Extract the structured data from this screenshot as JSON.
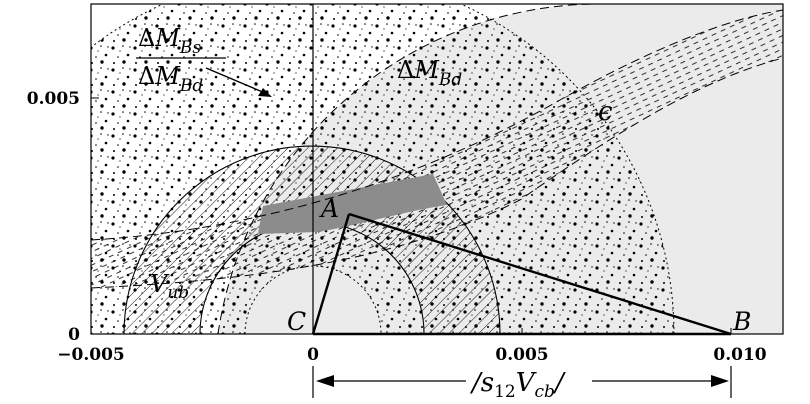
{
  "diagram": {
    "x_ticks": [
      "−0.005",
      "0",
      "0.005",
      "0.010"
    ],
    "y_ticks": [
      "0",
      "0.005"
    ],
    "vertices": {
      "a": "A",
      "b": "B",
      "c": "C"
    },
    "regions": {
      "delta_mbd": {
        "sym": "Δ",
        "base": "M",
        "sub": "Bd"
      },
      "epsilon": {
        "sym": "ϵ"
      },
      "vub": {
        "base": "V",
        "sub": "ub"
      },
      "ratio": {
        "num_sym": "Δ",
        "num_base": "M",
        "num_sub": "Bs",
        "den_sym": "Δ",
        "den_base": "M",
        "den_sub": "Bd"
      }
    },
    "bottom_label": {
      "open": "/",
      "s": "s",
      "s_sub": "12",
      "v": "V",
      "v_sub": "cb",
      "close": "/"
    }
  },
  "colors": {
    "light_gray": "#ebebeb",
    "allowed_region": "#8c8c8c",
    "ink": "#000000"
  }
}
